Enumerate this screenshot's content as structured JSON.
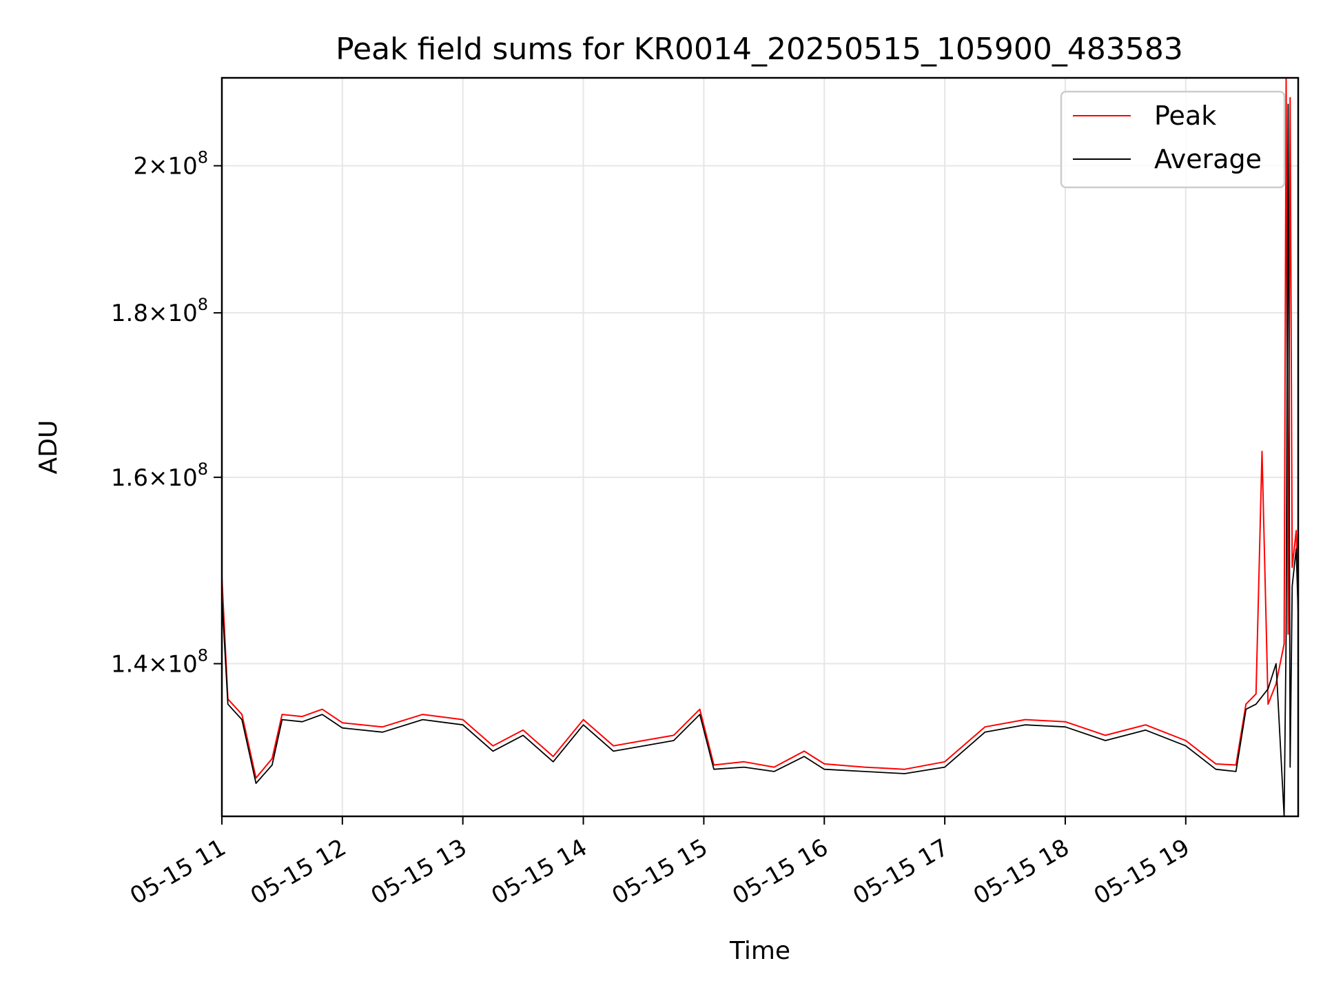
{
  "chart_data": {
    "type": "line",
    "title": "Peak field sums for KR0014_20250515_105900_483583",
    "xlabel": "Time",
    "ylabel": "ADU",
    "yscale": "log",
    "xlim": [
      "2025-05-15T11:00",
      "2025-05-15T19:56"
    ],
    "ylim": [
      125500000.0,
      213000000.0
    ],
    "grid": true,
    "legend_position": "top-right",
    "x_ticks": [
      "05-15 11",
      "05-15 12",
      "05-15 13",
      "05-15 14",
      "05-15 15",
      "05-15 16",
      "05-15 17",
      "05-15 18",
      "05-15 19"
    ],
    "y_ticks": [
      {
        "value": 140000000.0,
        "mantissa": "1.4",
        "exponent": "8"
      },
      {
        "value": 160000000.0,
        "mantissa": "1.6",
        "exponent": "8"
      },
      {
        "value": 180000000.0,
        "mantissa": "1.8",
        "exponent": "8"
      },
      {
        "value": 200000000.0,
        "mantissa": "2",
        "exponent": "8"
      }
    ],
    "series": [
      {
        "name": "Peak",
        "color": "#ff0000",
        "x": [
          "2025-05-15T11:00",
          "2025-05-15T11:03",
          "2025-05-15T11:10",
          "2025-05-15T11:17",
          "2025-05-15T11:25",
          "2025-05-15T11:30",
          "2025-05-15T11:40",
          "2025-05-15T11:50",
          "2025-05-15T12:00",
          "2025-05-15T12:20",
          "2025-05-15T12:40",
          "2025-05-15T13:00",
          "2025-05-15T13:15",
          "2025-05-15T13:30",
          "2025-05-15T13:45",
          "2025-05-15T14:00",
          "2025-05-15T14:15",
          "2025-05-15T14:30",
          "2025-05-15T14:45",
          "2025-05-15T14:58",
          "2025-05-15T15:05",
          "2025-05-15T15:20",
          "2025-05-15T15:35",
          "2025-05-15T15:50",
          "2025-05-15T16:00",
          "2025-05-15T16:20",
          "2025-05-15T16:40",
          "2025-05-15T17:00",
          "2025-05-15T17:20",
          "2025-05-15T17:40",
          "2025-05-15T18:00",
          "2025-05-15T18:20",
          "2025-05-15T18:40",
          "2025-05-15T19:00",
          "2025-05-15T19:15",
          "2025-05-15T19:25",
          "2025-05-15T19:30",
          "2025-05-15T19:35",
          "2025-05-15T19:38",
          "2025-05-15T19:41",
          "2025-05-15T19:45",
          "2025-05-15T19:49",
          "2025-05-15T19:50",
          "2025-05-15T19:51",
          "2025-05-15T19:52",
          "2025-05-15T19:53",
          "2025-05-15T19:55",
          "2025-05-15T19:56"
        ],
        "y": [
          149000000.0,
          136500000.0,
          135000000.0,
          129000000.0,
          130800000.0,
          135000000.0,
          134800000.0,
          135500000.0,
          134200000.0,
          133800000.0,
          135000000.0,
          134500000.0,
          132000000.0,
          133500000.0,
          131000000.0,
          134500000.0,
          132000000.0,
          132500000.0,
          133000000.0,
          135500000.0,
          130200000.0,
          130500000.0,
          130000000.0,
          131500000.0,
          130300000.0,
          130000000.0,
          129800000.0,
          130500000.0,
          133800000.0,
          134500000.0,
          134300000.0,
          133000000.0,
          134000000.0,
          132500000.0,
          130300000.0,
          130200000.0,
          136000000.0,
          137000000.0,
          163000000.0,
          136000000.0,
          138000000.0,
          142000000.0,
          213000000.0,
          143000000.0,
          210000000.0,
          150000000.0,
          154000000.0,
          146000000.0
        ]
      },
      {
        "name": "Average",
        "color": "#000000",
        "x": [
          "2025-05-15T11:00",
          "2025-05-15T11:03",
          "2025-05-15T11:10",
          "2025-05-15T11:17",
          "2025-05-15T11:25",
          "2025-05-15T11:30",
          "2025-05-15T11:40",
          "2025-05-15T11:50",
          "2025-05-15T12:00",
          "2025-05-15T12:20",
          "2025-05-15T12:40",
          "2025-05-15T13:00",
          "2025-05-15T13:15",
          "2025-05-15T13:30",
          "2025-05-15T13:45",
          "2025-05-15T14:00",
          "2025-05-15T14:15",
          "2025-05-15T14:30",
          "2025-05-15T14:45",
          "2025-05-15T14:58",
          "2025-05-15T15:05",
          "2025-05-15T15:20",
          "2025-05-15T15:35",
          "2025-05-15T15:50",
          "2025-05-15T16:00",
          "2025-05-15T16:20",
          "2025-05-15T16:40",
          "2025-05-15T17:00",
          "2025-05-15T17:20",
          "2025-05-15T17:40",
          "2025-05-15T18:00",
          "2025-05-15T18:20",
          "2025-05-15T18:40",
          "2025-05-15T19:00",
          "2025-05-15T19:15",
          "2025-05-15T19:25",
          "2025-05-15T19:30",
          "2025-05-15T19:35",
          "2025-05-15T19:41",
          "2025-05-15T19:45",
          "2025-05-15T19:49",
          "2025-05-15T19:50",
          "2025-05-15T19:51",
          "2025-05-15T19:52",
          "2025-05-15T19:53",
          "2025-05-15T19:55",
          "2025-05-15T19:56"
        ],
        "y": [
          147000000.0,
          136000000.0,
          134500000.0,
          128500000.0,
          130200000.0,
          134500000.0,
          134300000.0,
          135000000.0,
          133700000.0,
          133300000.0,
          134500000.0,
          134000000.0,
          131500000.0,
          133000000.0,
          130500000.0,
          134000000.0,
          131500000.0,
          132000000.0,
          132500000.0,
          135000000.0,
          129800000.0,
          130000000.0,
          129600000.0,
          131000000.0,
          129800000.0,
          129600000.0,
          129400000.0,
          130000000.0,
          133300000.0,
          134000000.0,
          133800000.0,
          132500000.0,
          133500000.0,
          132000000.0,
          129800000.0,
          129600000.0,
          135500000.0,
          136000000.0,
          137500000.0,
          140000000.0,
          125500000.0,
          143000000.0,
          209000000.0,
          130000000.0,
          148000000.0,
          152000000.0,
          145000000.0
        ]
      }
    ]
  }
}
